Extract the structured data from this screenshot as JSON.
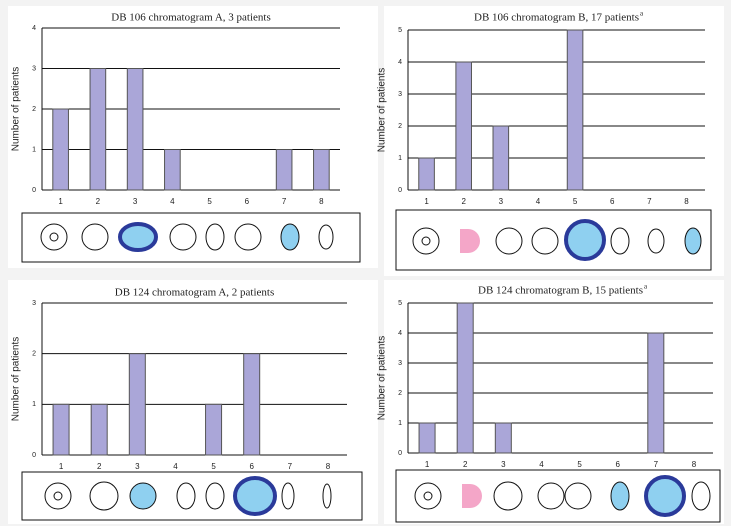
{
  "chart_data": [
    {
      "type": "bar",
      "title": "DB 106 chromatogram A, 3 patients",
      "ylabel": "Number of patients",
      "categories": [
        "1",
        "2",
        "3",
        "4",
        "5",
        "6",
        "7",
        "8"
      ],
      "values": [
        2,
        3,
        3,
        1,
        0,
        0,
        1,
        1
      ],
      "ylim": [
        0,
        4
      ],
      "yticks": [
        0,
        1,
        2,
        3,
        4
      ],
      "color": "#aaa6d8",
      "grid": true
    },
    {
      "type": "bar",
      "title": "DB 106 chromatogram B, 17 patients",
      "title_note": "a",
      "ylabel": "Number of patients",
      "categories": [
        "1",
        "2",
        "3",
        "4",
        "5",
        "6",
        "7",
        "8"
      ],
      "values": [
        1,
        4,
        2,
        0,
        5,
        0,
        0,
        0
      ],
      "ylim": [
        0,
        5
      ],
      "yticks": [
        0,
        1,
        2,
        3,
        4,
        5
      ],
      "color": "#aaa6d8",
      "grid": true
    },
    {
      "type": "bar",
      "title": "DB 124 chromatogram A, 2 patients",
      "ylabel": "Number of patients",
      "categories": [
        "1",
        "2",
        "3",
        "4",
        "5",
        "6",
        "7",
        "8"
      ],
      "values": [
        1,
        1,
        2,
        0,
        1,
        2,
        0,
        0
      ],
      "ylim": [
        0,
        3
      ],
      "yticks": [
        0,
        1,
        2,
        3
      ],
      "color": "#aaa6d8",
      "grid": true
    },
    {
      "type": "bar",
      "title": "DB 124 chromatogram B, 15 patients",
      "title_note": "a",
      "ylabel": "Number of patients",
      "categories": [
        "1",
        "2",
        "3",
        "4",
        "5",
        "6",
        "7",
        "8"
      ],
      "values": [
        1,
        5,
        1,
        0,
        0,
        0,
        4,
        0
      ],
      "ylim": [
        0,
        5
      ],
      "yticks": [
        0,
        1,
        2,
        3,
        4,
        5
      ],
      "color": "#aaa6d8",
      "grid": true
    }
  ]
}
